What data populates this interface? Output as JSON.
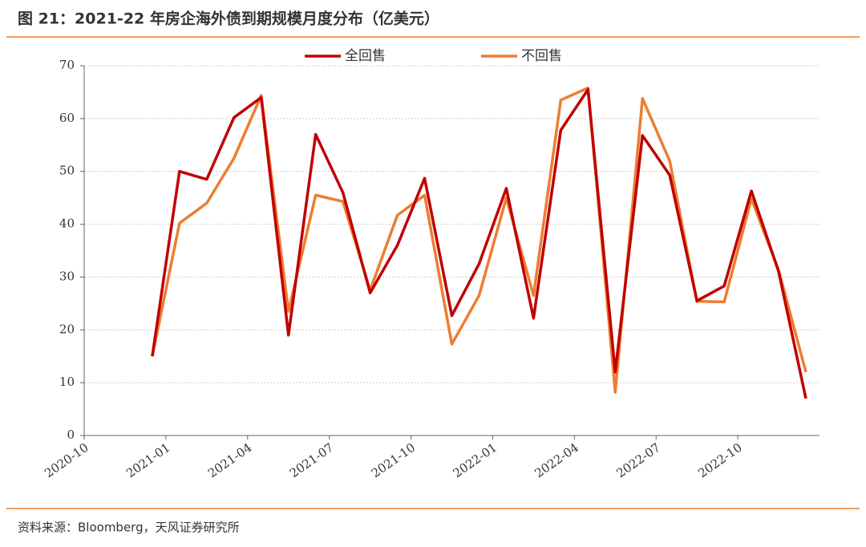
{
  "title": "图 21：2021-22 年房企海外债到期规模月度分布（亿美元）",
  "source": "资料来源：Bloomberg，天风证券研究所",
  "chart_data": {
    "type": "line",
    "x": [
      "2020-12",
      "2021-01",
      "2021-02",
      "2021-03",
      "2021-04",
      "2021-05",
      "2021-06",
      "2021-07",
      "2021-08",
      "2021-09",
      "2021-10",
      "2021-11",
      "2021-12",
      "2022-01",
      "2022-02",
      "2022-03",
      "2022-04",
      "2022-05",
      "2022-06",
      "2022-07",
      "2022-08",
      "2022-09",
      "2022-10",
      "2022-11",
      "2022-12"
    ],
    "series": [
      {
        "name": "全回售",
        "color": "#c00000",
        "values": [
          15,
          50,
          48.5,
          60.2,
          64,
          19,
          57,
          46,
          27,
          36,
          48.7,
          22.7,
          32.5,
          46.8,
          22.2,
          57.8,
          65.5,
          12,
          56.8,
          49.3,
          25.5,
          28.3,
          46.3,
          31,
          7
        ]
      },
      {
        "name": "不回售",
        "color": "#ed7d31",
        "values": [
          15,
          40.2,
          44,
          52.5,
          64.4,
          23.5,
          45.5,
          44.3,
          27.5,
          41.7,
          45.5,
          17.3,
          26.5,
          45,
          26.5,
          63.5,
          65.8,
          8.2,
          63.8,
          52,
          25.4,
          25.3,
          44.8,
          31.3,
          12
        ]
      }
    ],
    "xlim": [
      "2020-10",
      "2023-01"
    ],
    "xticks": [
      "2020-10",
      "2021-01",
      "2021-04",
      "2021-07",
      "2021-10",
      "2022-01",
      "2022-04",
      "2022-07",
      "2022-10"
    ],
    "ylim": [
      0,
      70
    ],
    "yticks": [
      0,
      10,
      20,
      30,
      40,
      50,
      60,
      70
    ],
    "grid": true,
    "legend": "top"
  }
}
